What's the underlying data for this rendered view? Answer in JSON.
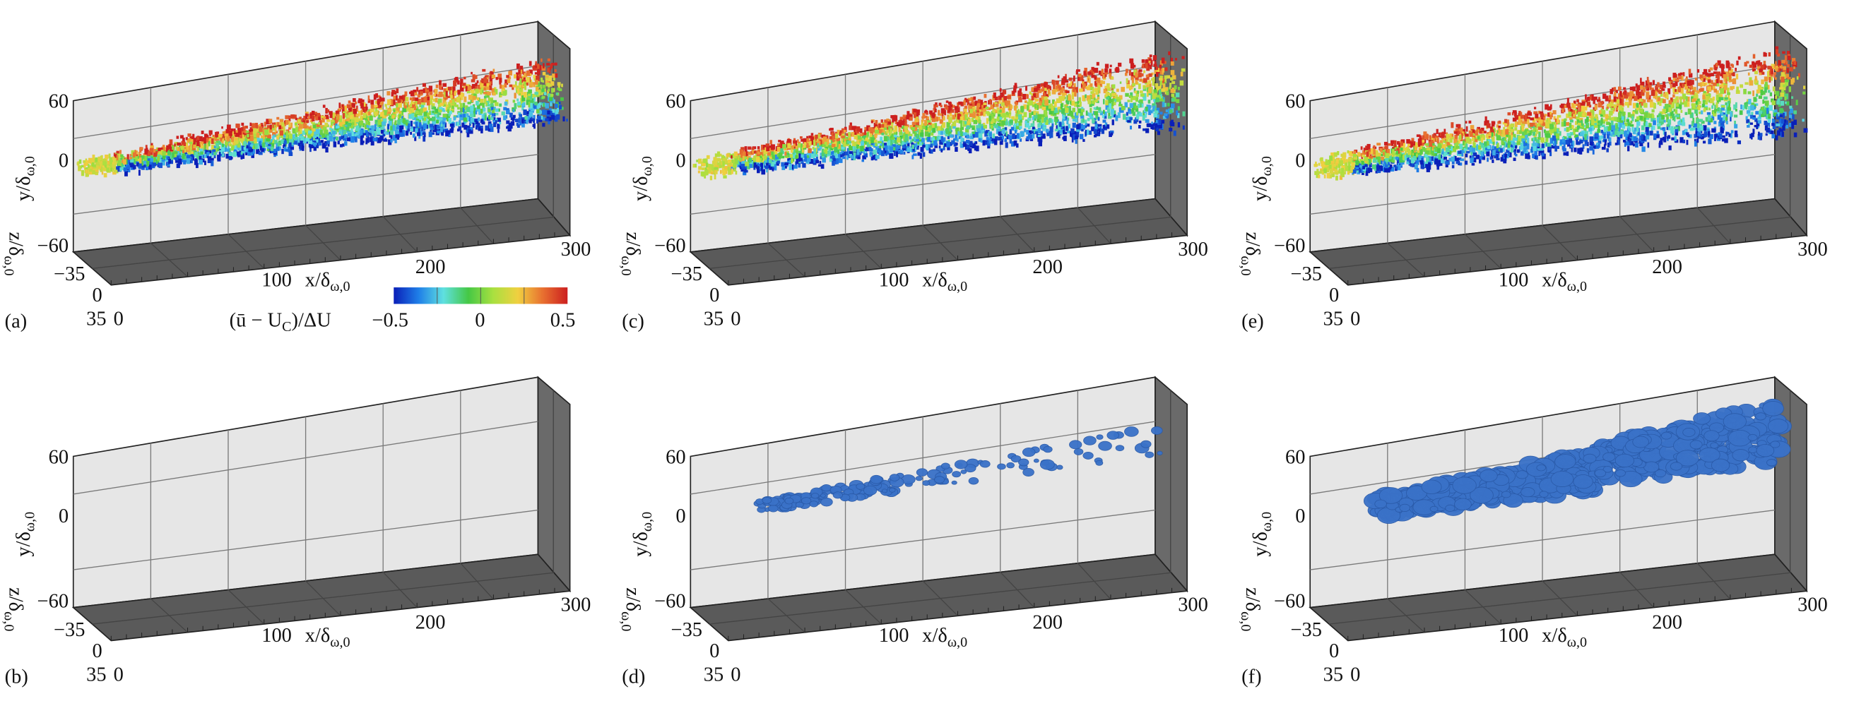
{
  "panels": [
    {
      "label": "(a)",
      "content": "colored-isosurface",
      "colorbar": true
    },
    {
      "label": "(c)",
      "content": "colored-isosurface",
      "colorbar": false
    },
    {
      "label": "(e)",
      "content": "colored-isosurface",
      "colorbar": false
    },
    {
      "label": "(b)",
      "content": "empty",
      "colorbar": false
    },
    {
      "label": "(d)",
      "content": "blue-isosurface-sparse",
      "colorbar": false
    },
    {
      "label": "(f)",
      "content": "blue-isosurface-dense",
      "colorbar": false
    }
  ],
  "axes": {
    "y_label": {
      "main": "y/δ",
      "sub": "ω,0"
    },
    "x_label": {
      "main": "x/δ",
      "sub": "ω,0"
    },
    "z_label": {
      "main": "z/δ",
      "sub": "ω,0"
    },
    "y_ticks": [
      "60",
      "0",
      "−60"
    ],
    "z_ticks": [
      "−35",
      "0",
      "35"
    ],
    "x_ticks": [
      "0",
      "100",
      "200",
      "300"
    ]
  },
  "colorbar": {
    "label_pre": "(ū − U",
    "label_sub": "C",
    "label_post": ")/ΔU",
    "ticks": [
      "−0.5",
      "0",
      "0.5"
    ],
    "colormap": [
      "#0a1fb8",
      "#1f7fe8",
      "#5fe0e0",
      "#45c845",
      "#a8e040",
      "#f0d040",
      "#e87030",
      "#cc1f1f"
    ]
  },
  "colors": {
    "wall": "#e6e6e6",
    "floor": "#5a5a5a",
    "side": "#6a6a6a",
    "grid": "#7a7a7a",
    "blue_surface": "#3a72c8"
  }
}
